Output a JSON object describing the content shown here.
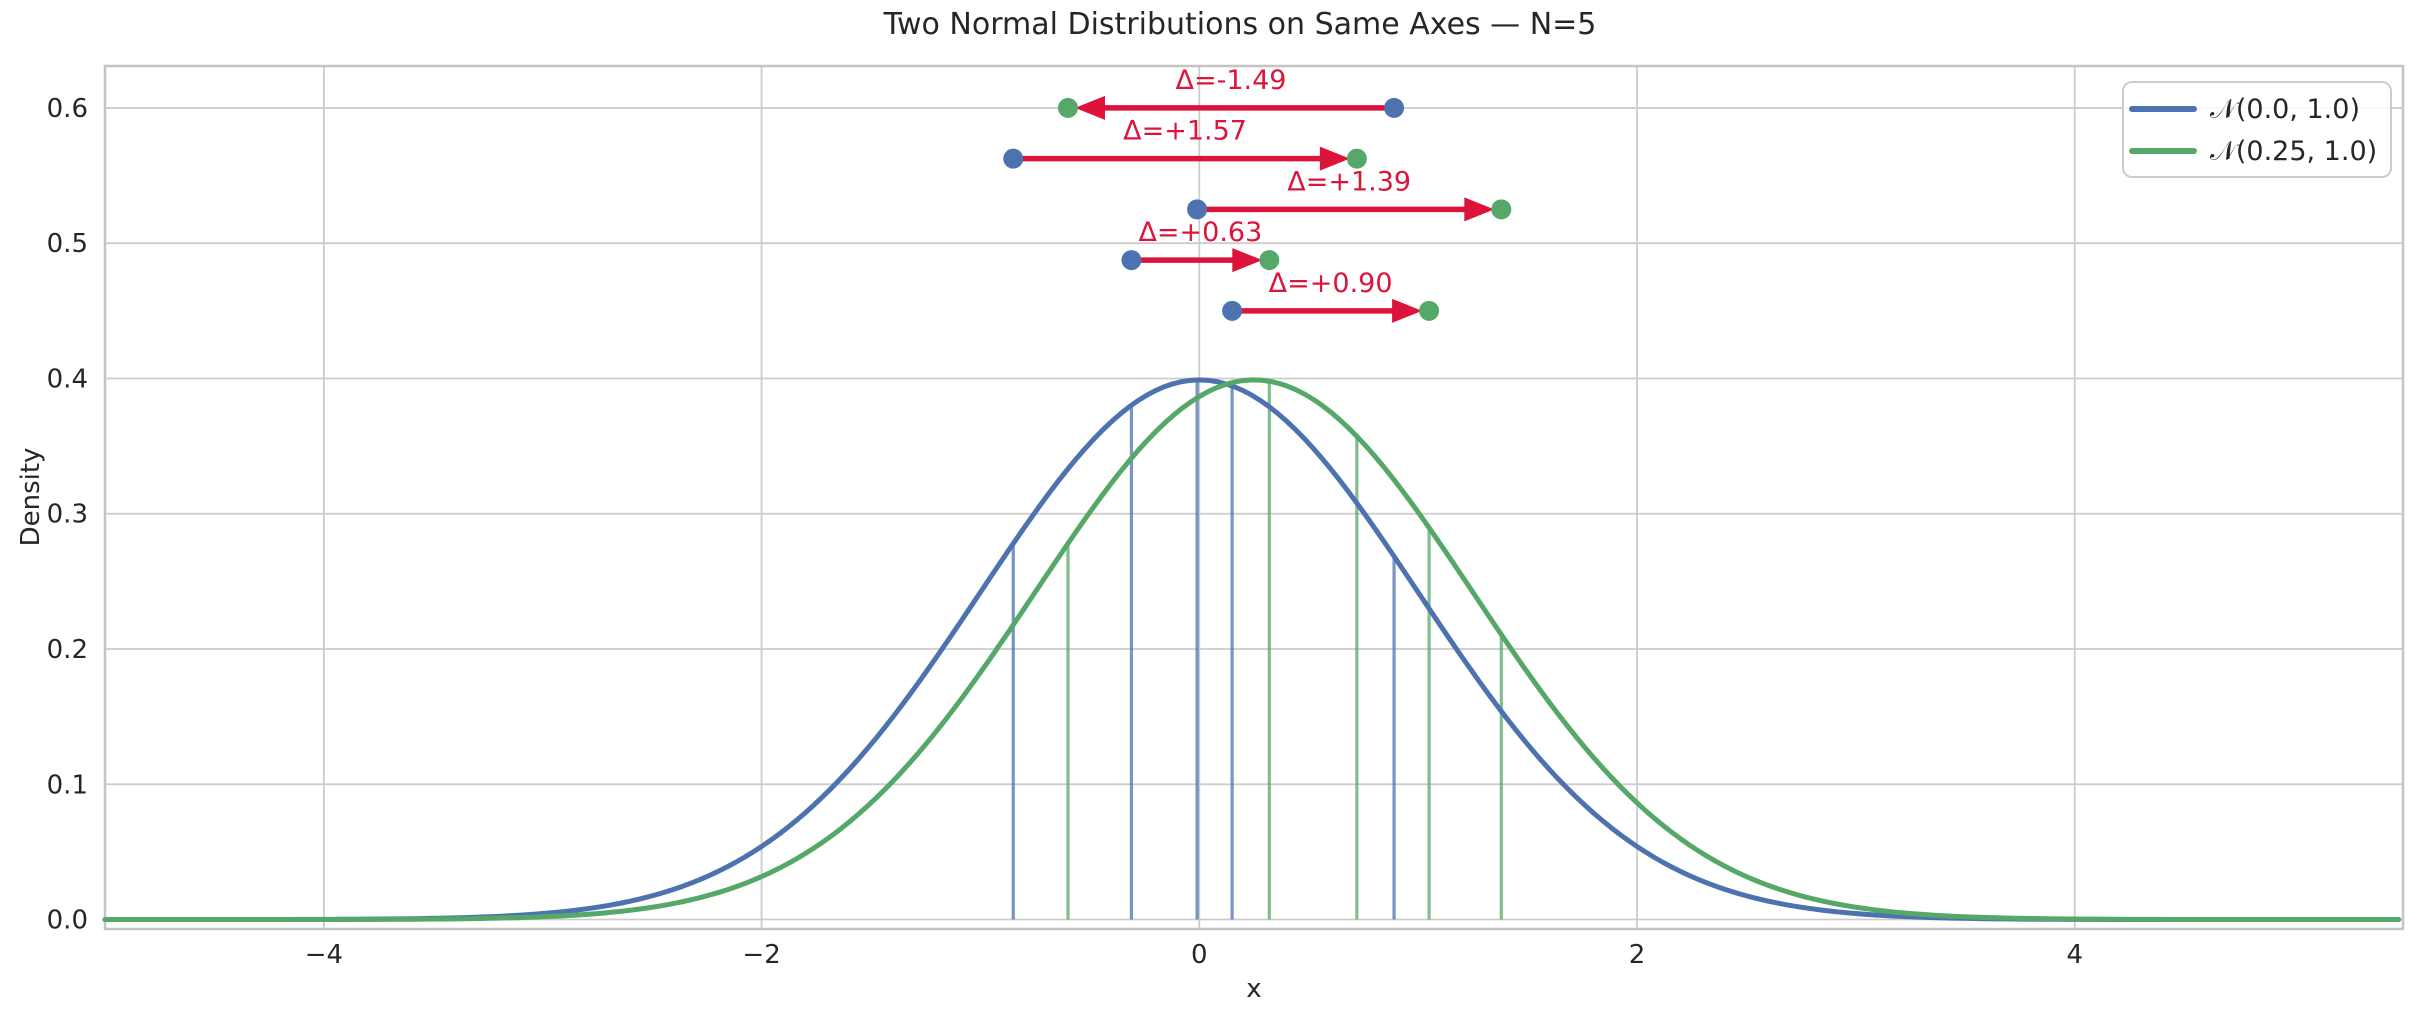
{
  "title": "Two Normal Distributions on Same Axes — N=5",
  "axes": {
    "xlabel": "x",
    "ylabel": "Density",
    "xlim": [
      -5.0,
      5.5
    ],
    "ylim": [
      -0.007,
      0.631
    ],
    "x_ticks": [
      -4,
      -2,
      0,
      2,
      4
    ],
    "x_tick_labels": [
      "−4",
      "−2",
      "0",
      "2",
      "4"
    ],
    "y_ticks": [
      0.0,
      0.1,
      0.2,
      0.3,
      0.4,
      0.5,
      0.6
    ],
    "y_tick_labels": [
      "0.0",
      "0.1",
      "0.2",
      "0.3",
      "0.4",
      "0.5",
      "0.6"
    ],
    "grid": true
  },
  "legend": {
    "position": "upper right",
    "items": [
      {
        "label": "𝒩(0.0, 1.0)",
        "color": "#4C72B0"
      },
      {
        "label": "𝒩(0.25, 1.0)",
        "color": "#55A868"
      }
    ]
  },
  "chart_data": {
    "type": "line",
    "title": "Two Normal Distributions on Same Axes — N=5",
    "xlabel": "x",
    "ylabel": "Density",
    "n_samples": 5,
    "curves": [
      {
        "name": "𝒩(0.0, 1.0)",
        "mu": 0.0,
        "sigma": 1.0,
        "color": "#4C72B0",
        "peak_density": 0.3989
      },
      {
        "name": "𝒩(0.25, 1.0)",
        "mu": 0.25,
        "sigma": 1.0,
        "color": "#55A868",
        "peak_density": 0.3989
      }
    ],
    "samples_blue": [
      0.89,
      -0.85,
      -0.01,
      -0.31,
      0.15
    ],
    "samples_green": [
      -0.6,
      0.72,
      1.38,
      0.32,
      1.05
    ],
    "pairs": [
      {
        "from": 0.89,
        "to": -0.6,
        "delta": -1.49,
        "label": "Δ=-1.49",
        "arrow_y": 0.6
      },
      {
        "from": -0.85,
        "to": 0.72,
        "delta": 1.57,
        "label": "Δ=+1.57",
        "arrow_y": 0.5625
      },
      {
        "from": -0.01,
        "to": 1.38,
        "delta": 1.39,
        "label": "Δ=+1.39",
        "arrow_y": 0.525
      },
      {
        "from": -0.31,
        "to": 0.32,
        "delta": 0.63,
        "label": "Δ=+0.63",
        "arrow_y": 0.4875
      },
      {
        "from": 0.15,
        "to": 1.05,
        "delta": 0.9,
        "label": "Δ=+0.90",
        "arrow_y": 0.45
      }
    ],
    "arrow_color": "#DC143C"
  },
  "style": {
    "background": "#ffffff",
    "grid_color": "#cccccc",
    "spine_color": "#c4c4c4",
    "text_color": "#262626",
    "blue": "#4C72B0",
    "green": "#55A868",
    "crimson": "#DC143C"
  }
}
